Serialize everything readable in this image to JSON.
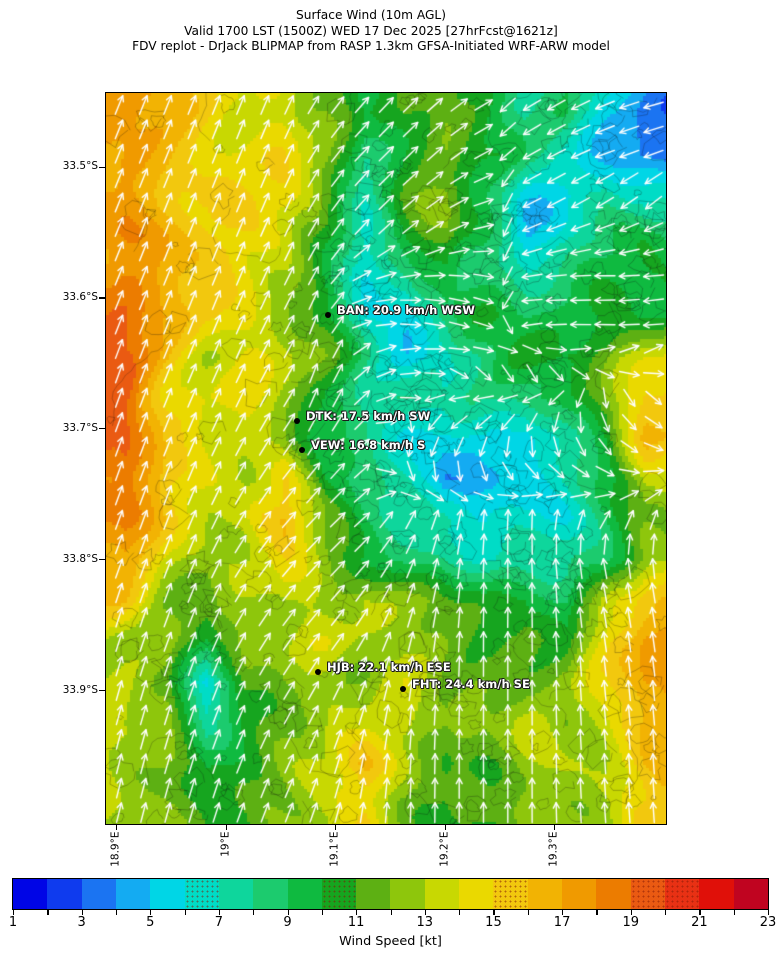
{
  "title": {
    "line1": "Surface Wind (10m AGL)",
    "line2": "Valid 1700 LST (1500Z) WED 17 Dec 2025 [27hrFcst@1621z]",
    "line3": "FDV replot - DrJack BLIPMAP from RASP 1.3km GFSA-Initiated WRF-ARW model"
  },
  "chart_data": {
    "type": "heatmap",
    "subtype": "surface-wind-vector-map",
    "title": "Surface Wind (10m AGL)",
    "x_axis": {
      "ticks": [
        {
          "value": 18.9,
          "label": "18.9°E"
        },
        {
          "value": 19.0,
          "label": "19°E"
        },
        {
          "value": 19.1,
          "label": "19.1°E"
        },
        {
          "value": 19.2,
          "label": "19.2°E"
        },
        {
          "value": 19.3,
          "label": "19.3°E"
        }
      ],
      "range_deg_east": [
        18.891,
        19.402
      ]
    },
    "y_axis": {
      "ticks": [
        {
          "value": 33.5,
          "label": "33.5°S"
        },
        {
          "value": 33.6,
          "label": "33.6°S"
        },
        {
          "value": 33.7,
          "label": "33.7°S"
        },
        {
          "value": 33.8,
          "label": "33.8°S"
        },
        {
          "value": 33.9,
          "label": "33.9°S"
        }
      ],
      "range_deg_south": [
        33.444,
        34.003
      ]
    },
    "colorbar": {
      "label": "Wind Speed [kt]",
      "min": 1,
      "max": 23,
      "tick_labels": [
        "1",
        "3",
        "5",
        "7",
        "9",
        "11",
        "13",
        "15",
        "17",
        "19",
        "21",
        "23"
      ],
      "palette": [
        {
          "from_kt": 1,
          "color": "#0005e6",
          "stipple": false
        },
        {
          "from_kt": 2,
          "color": "#0f3bee",
          "stipple": false
        },
        {
          "from_kt": 3,
          "color": "#1b74f2",
          "stipple": false
        },
        {
          "from_kt": 4,
          "color": "#14abf2",
          "stipple": false
        },
        {
          "from_kt": 5,
          "color": "#00d6e6",
          "stipple": false
        },
        {
          "from_kt": 6,
          "color": "#00dcc6",
          "stipple": true
        },
        {
          "from_kt": 7,
          "color": "#0ed69c",
          "stipple": false
        },
        {
          "from_kt": 8,
          "color": "#1ccb6e",
          "stipple": false
        },
        {
          "from_kt": 9,
          "color": "#0fba40",
          "stipple": false
        },
        {
          "from_kt": 10,
          "color": "#16a51f",
          "stipple": true
        },
        {
          "from_kt": 11,
          "color": "#5db013",
          "stipple": false
        },
        {
          "from_kt": 12,
          "color": "#8ec60c",
          "stipple": false
        },
        {
          "from_kt": 13,
          "color": "#c8d802",
          "stipple": false
        },
        {
          "from_kt": 14,
          "color": "#ead900",
          "stipple": false
        },
        {
          "from_kt": 15,
          "color": "#f2c80e",
          "stipple": true
        },
        {
          "from_kt": 16,
          "color": "#f2b303",
          "stipple": false
        },
        {
          "from_kt": 17,
          "color": "#f09a00",
          "stipple": false
        },
        {
          "from_kt": 18,
          "color": "#ec7c00",
          "stipple": false
        },
        {
          "from_kt": 19,
          "color": "#ea5a12",
          "stipple": true
        },
        {
          "from_kt": 20,
          "color": "#e83114",
          "stipple": true
        },
        {
          "from_kt": 21,
          "color": "#e01009",
          "stipple": false
        },
        {
          "from_kt": 22,
          "color": "#c00420",
          "stipple": false
        }
      ]
    },
    "stations": [
      {
        "id": "BAN",
        "label": "BAN: 20.9 km/h WSW",
        "lon": 19.0936,
        "lat": 33.6134
      },
      {
        "id": "DTK",
        "label": "DTK: 17.5 km/h SW",
        "lon": 19.0653,
        "lat": 33.6944
      },
      {
        "id": "VEW",
        "label": "VEW: 16.8 km/h S",
        "lon": 19.0699,
        "lat": 33.7166
      },
      {
        "id": "HJB",
        "label": "HJB: 22.1 km/h ESE",
        "lon": 19.0845,
        "lat": 33.8862
      },
      {
        "id": "FHT",
        "label": "FHT: 24.4 km/h SE",
        "lon": 19.1621,
        "lat": 33.8992
      }
    ],
    "wind_grid": {
      "note": "coarse estimate of plotted field; speeds in kt, directions are math degrees the arrows point toward (0=E, 90=N)",
      "cols": 14,
      "rows": 18,
      "speeds_kt": [
        [
          17,
          16,
          15.5,
          14,
          14,
          12,
          9,
          11.5,
          12.5,
          10,
          7,
          8.5,
          6,
          4
        ],
        [
          17,
          16,
          15,
          14.5,
          14,
          12,
          8,
          11,
          12,
          10,
          8,
          7,
          5,
          3
        ],
        [
          17.5,
          16.5,
          15,
          14.5,
          14,
          12,
          8,
          11,
          12,
          9,
          6,
          6,
          7,
          6
        ],
        [
          18,
          17,
          15,
          14,
          13.5,
          11,
          7,
          10,
          11.5,
          9,
          5,
          7,
          8,
          9
        ],
        [
          18,
          17,
          15,
          14,
          13,
          10,
          6,
          7,
          10,
          9,
          8,
          8,
          9,
          10
        ],
        [
          18,
          17,
          15.5,
          14.5,
          13,
          10,
          6,
          5,
          9,
          10,
          9,
          9,
          10,
          11
        ],
        [
          19,
          16,
          14,
          14,
          13,
          11,
          9,
          6,
          6,
          8,
          10,
          11,
          12,
          14
        ],
        [
          19,
          15,
          14,
          14,
          13,
          10,
          8,
          8,
          7,
          7,
          9,
          10,
          12,
          15.5
        ],
        [
          20,
          15,
          14,
          13.5,
          12,
          9,
          8,
          6,
          5,
          6,
          5,
          8,
          10,
          16
        ],
        [
          19,
          15,
          14,
          13,
          15,
          10,
          8,
          7,
          4,
          6,
          5,
          7,
          9,
          13
        ],
        [
          18,
          15,
          14,
          14,
          16,
          11,
          9,
          8,
          7,
          6,
          5.5,
          6,
          9,
          12
        ],
        [
          17,
          14,
          13,
          13,
          14,
          12,
          10,
          9,
          8,
          7,
          7,
          8,
          9,
          12
        ],
        [
          16,
          13,
          11,
          12,
          13,
          13,
          14,
          12,
          11,
          10,
          11,
          9,
          13,
          16
        ],
        [
          13,
          13,
          10,
          12,
          13,
          14,
          13,
          12,
          11,
          11,
          12,
          11,
          14,
          17
        ],
        [
          13,
          12,
          5,
          11,
          13,
          13,
          12,
          13,
          12,
          12,
          12,
          12,
          14,
          18
        ],
        [
          12.5,
          12,
          8,
          11,
          12,
          12,
          13,
          14,
          12,
          12,
          13,
          12,
          14,
          17
        ],
        [
          13,
          12,
          10,
          11,
          12,
          13,
          16,
          14,
          11,
          11,
          12,
          13,
          14,
          16
        ],
        [
          13,
          12,
          11,
          11,
          12,
          13,
          15,
          12,
          10,
          11,
          12,
          13,
          13,
          15
        ]
      ],
      "directions_deg": [
        [
          68,
          68,
          68,
          68,
          66,
          55,
          48,
          45,
          40,
          30,
          212,
          208,
          202,
          196
        ],
        [
          68,
          68,
          68,
          68,
          66,
          55,
          45,
          45,
          40,
          28,
          210,
          206,
          200,
          200
        ],
        [
          68,
          68,
          68,
          68,
          66,
          56,
          48,
          42,
          35,
          20,
          208,
          210,
          215,
          222
        ],
        [
          68,
          68,
          68,
          67,
          65,
          58,
          45,
          40,
          28,
          10,
          202,
          198,
          196,
          200
        ],
        [
          68,
          68,
          68,
          67,
          64,
          60,
          25,
          10,
          0,
          350,
          190,
          184,
          180,
          185
        ],
        [
          68,
          68,
          68,
          66,
          62,
          70,
          10,
          355,
          345,
          340,
          182,
          180,
          182,
          188
        ],
        [
          70,
          68,
          67,
          65,
          60,
          75,
          35,
          10,
          0,
          350,
          340,
          0,
          10,
          20
        ],
        [
          70,
          68,
          66,
          64,
          58,
          70,
          40,
          0,
          190,
          190,
          200,
          230,
          280,
          320
        ],
        [
          70,
          68,
          66,
          62,
          56,
          60,
          45,
          250,
          235,
          240,
          260,
          280,
          300,
          330
        ],
        [
          70,
          69,
          66,
          60,
          52,
          48,
          40,
          300,
          280,
          300,
          320,
          330,
          340,
          10
        ],
        [
          70,
          69,
          66,
          58,
          50,
          45,
          42,
          60,
          75,
          85,
          90,
          80,
          60,
          70
        ],
        [
          70,
          69,
          66,
          56,
          50,
          45,
          48,
          65,
          80,
          88,
          92,
          96,
          100,
          95
        ],
        [
          72,
          70,
          67,
          58,
          52,
          48,
          55,
          70,
          82,
          88,
          90,
          95,
          100,
          100
        ],
        [
          72,
          70,
          68,
          60,
          55,
          52,
          60,
          75,
          85,
          90,
          90,
          95,
          98,
          98
        ],
        [
          74,
          72,
          70,
          64,
          58,
          60,
          70,
          80,
          88,
          90,
          90,
          92,
          96,
          96
        ],
        [
          75,
          73,
          71,
          66,
          62,
          65,
          75,
          85,
          88,
          90,
          90,
          92,
          95,
          95
        ],
        [
          76,
          74,
          72,
          68,
          65,
          70,
          80,
          86,
          90,
          90,
          90,
          92,
          94,
          94
        ],
        [
          76,
          75,
          73,
          70,
          68,
          72,
          82,
          88,
          90,
          90,
          90,
          92,
          94,
          94
        ]
      ]
    }
  }
}
